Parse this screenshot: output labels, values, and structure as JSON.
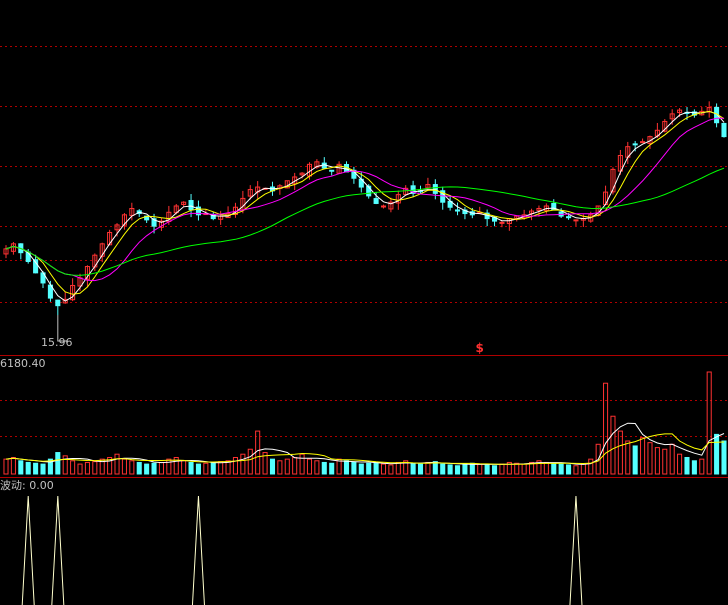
{
  "labels": {
    "low_marker": "15.96",
    "volume_max": "6180.40",
    "indicator": "波动: 0.00",
    "signal_marker": "$"
  },
  "colors": {
    "background": "#000000",
    "up": "#ff3232",
    "down": "#54ffff",
    "ma_short": "#ffffff",
    "ma_mid": "#ffff00",
    "ma_long": "#ff00ff",
    "ma_trend": "#00ff00",
    "grid": "#b00000",
    "indicator_line": "#ffffcc"
  },
  "chart_data": {
    "type": "candlestick",
    "price_panel": {
      "low_marker_value": 15.96,
      "closes": [
        21.2,
        21.6,
        20.9,
        20.2,
        19.3,
        18.5,
        17.3,
        16.7,
        17.2,
        18.3,
        18.9,
        19.8,
        20.7,
        21.6,
        22.5,
        23.1,
        23.9,
        24.4,
        24.0,
        23.5,
        23.0,
        23.4,
        24.1,
        24.6,
        24.9,
        24.3,
        23.9,
        24.0,
        23.6,
        23.8,
        24.0,
        24.5,
        25.2,
        25.9,
        26.1,
        26.0,
        25.8,
        26.2,
        26.6,
        26.9,
        27.2,
        27.9,
        28.1,
        27.6,
        27.4,
        27.9,
        27.3,
        26.8,
        26.1,
        25.4,
        24.8,
        24.6,
        24.9,
        25.5,
        26.0,
        25.6,
        25.8,
        26.3,
        25.6,
        24.9,
        24.5,
        24.2,
        24.0,
        23.9,
        24.1,
        23.6,
        23.4,
        23.3,
        23.6,
        23.8,
        23.9,
        24.2,
        24.4,
        24.6,
        24.3,
        23.8,
        23.7,
        23.5,
        23.6,
        23.9,
        24.6,
        25.7,
        27.5,
        28.6,
        29.3,
        29.5,
        29.7,
        30.1,
        30.6,
        31.3,
        31.9,
        32.2,
        32.0,
        31.8,
        32.1,
        32.4,
        31.2,
        30.1
      ],
      "moving_averages": [
        "ma_short",
        "ma_mid",
        "ma_long",
        "ma_trend"
      ]
    },
    "volume_panel": {
      "max_label_value": 6180.4,
      "volumes": [
        900,
        1000,
        800,
        700,
        650,
        600,
        900,
        1300,
        1100,
        800,
        600,
        700,
        750,
        900,
        1000,
        1200,
        900,
        800,
        700,
        600,
        650,
        700,
        900,
        1000,
        800,
        700,
        600,
        650,
        700,
        750,
        800,
        1000,
        1200,
        1500,
        2600,
        1300,
        900,
        800,
        900,
        1000,
        1200,
        900,
        800,
        700,
        650,
        900,
        800,
        700,
        600,
        650,
        700,
        600,
        550,
        700,
        800,
        650,
        600,
        700,
        750,
        600,
        550,
        500,
        600,
        650,
        600,
        550,
        500,
        600,
        700,
        650,
        600,
        700,
        800,
        700,
        650,
        600,
        550,
        500,
        600,
        900,
        1800,
        5500,
        3500,
        2600,
        2000,
        1700,
        2200,
        1900,
        1600,
        1500,
        1800,
        1200,
        1000,
        800,
        900,
        6180,
        2400,
        2000
      ]
    },
    "indicator_panel": {
      "value": 0.0,
      "signal_bars": [
        3,
        7,
        26,
        77
      ]
    },
    "signal_bar": 64
  }
}
